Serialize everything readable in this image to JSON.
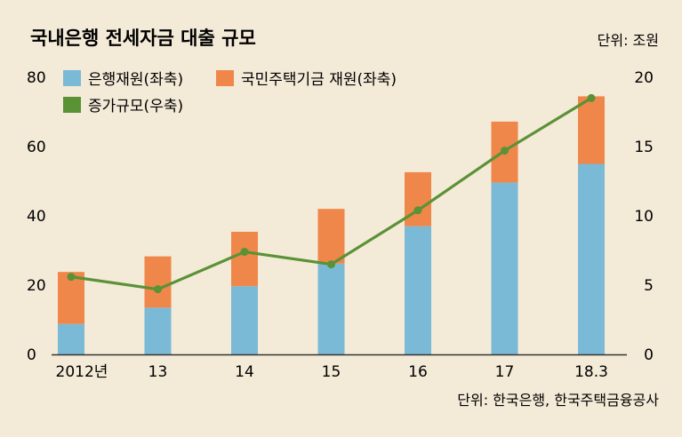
{
  "title": "국내은행 전세자금 대출 규모",
  "unit_label": "단위: 조원",
  "source_label": "단위: 한국은행, 한국주택금융공사",
  "colors": {
    "background": "#f4ead8",
    "bank": "#7bbad6",
    "hf": "#f0874a",
    "increase": "#5a9236",
    "axis": "#333333"
  },
  "chart_data": {
    "type": "bar",
    "stacked": true,
    "title": "국내은행 전세자금 대출 규모",
    "categories": [
      "2012년",
      "13",
      "14",
      "15",
      "16",
      "17",
      "18.3"
    ],
    "series": [
      {
        "name": "은행재원(좌축)",
        "axis": "left",
        "kind": "bar",
        "values": [
          8.8,
          13.5,
          19.7,
          26.2,
          37.0,
          49.6,
          55.0
        ]
      },
      {
        "name": "국민주택기금 재원(좌축)",
        "axis": "left",
        "kind": "bar",
        "values": [
          15.0,
          14.8,
          15.7,
          15.8,
          15.6,
          17.6,
          19.5
        ]
      },
      {
        "name": "증가규모(우축)",
        "axis": "right",
        "kind": "line",
        "values": [
          5.6,
          4.7,
          7.4,
          6.5,
          10.4,
          14.7,
          18.5
        ]
      }
    ],
    "y_left": {
      "ylim": [
        0,
        80
      ],
      "ticks": [
        "0",
        "20",
        "40",
        "60",
        "80"
      ]
    },
    "y_right": {
      "ylim": [
        0,
        20
      ],
      "ticks": [
        "0",
        "5",
        "10",
        "15",
        "20"
      ]
    },
    "legend_position": "top-left"
  }
}
